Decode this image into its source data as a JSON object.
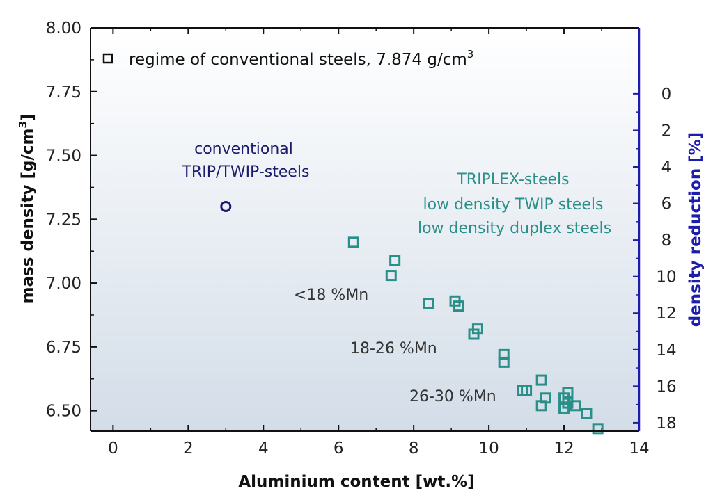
{
  "chart_data": {
    "type": "scatter",
    "xlabel": "Aluminium content [wt.%]",
    "ylabel_base": "mass density  [g/cm",
    "ylabel_sup": "3",
    "ylabel_end": "]",
    "ylabel_right": "density reduction [%]",
    "xlim": [
      -0.6,
      14
    ],
    "ylim": [
      6.42,
      8.0
    ],
    "y2lim": [
      -3.61,
      18.46
    ],
    "x_ticks": [
      "0",
      "2",
      "4",
      "6",
      "8",
      "10",
      "12",
      "14"
    ],
    "x_tick_values": [
      0,
      2,
      4,
      6,
      8,
      10,
      12,
      14
    ],
    "y_ticks": [
      "6.50",
      "6.75",
      "7.00",
      "7.25",
      "7.50",
      "7.75",
      "8.00"
    ],
    "y_tick_values": [
      6.5,
      6.75,
      7.0,
      7.25,
      7.5,
      7.75,
      8.0
    ],
    "y2_ticks": [
      "0",
      "2",
      "4",
      "6",
      "8",
      "10",
      "12",
      "14",
      "16",
      "18"
    ],
    "y2_tick_values": [
      0,
      2,
      4,
      6,
      8,
      10,
      12,
      14,
      16,
      18
    ],
    "grid": false,
    "colors": {
      "background_top": "#ffffff",
      "background_bottom": "#d3dde8",
      "teal": "#2a8f88",
      "navy": "#1c1c6e",
      "right_axis": "#1d1dab",
      "axis": "#111111"
    },
    "legend": {
      "position": "top-left",
      "text": "regime of conventional steels, 7.874 g/cm",
      "sup": "3"
    },
    "annotations": {
      "conventional_line1": "conventional",
      "conventional_line2": "TRIP/TWIP-steels",
      "triplex_line1": "TRIPLEX-steels",
      "triplex_line2": "low density TWIP steels",
      "triplex_line3": "low density duplex steels",
      "mn_low": "<18 %Mn",
      "mn_mid": "18-26 %Mn",
      "mn_high": "26-30 %Mn"
    },
    "series": [
      {
        "marker": "circle",
        "color": "#1c1c6e",
        "points": [
          [
            3.0,
            7.3
          ]
        ]
      },
      {
        "marker": "square",
        "color": "#2a8f88",
        "points": [
          [
            6.4,
            7.16
          ],
          [
            7.5,
            7.09
          ],
          [
            7.4,
            7.03
          ],
          [
            8.4,
            6.92
          ],
          [
            9.1,
            6.93
          ],
          [
            9.2,
            6.91
          ],
          [
            9.7,
            6.82
          ],
          [
            9.6,
            6.8
          ],
          [
            10.4,
            6.72
          ],
          [
            10.4,
            6.69
          ],
          [
            10.9,
            6.58
          ],
          [
            11.0,
            6.58
          ],
          [
            11.4,
            6.62
          ],
          [
            11.5,
            6.55
          ],
          [
            11.4,
            6.52
          ],
          [
            12.1,
            6.57
          ],
          [
            12.0,
            6.55
          ],
          [
            12.1,
            6.53
          ],
          [
            12.0,
            6.51
          ],
          [
            12.3,
            6.52
          ],
          [
            12.6,
            6.49
          ],
          [
            12.9,
            6.43
          ]
        ]
      }
    ]
  }
}
